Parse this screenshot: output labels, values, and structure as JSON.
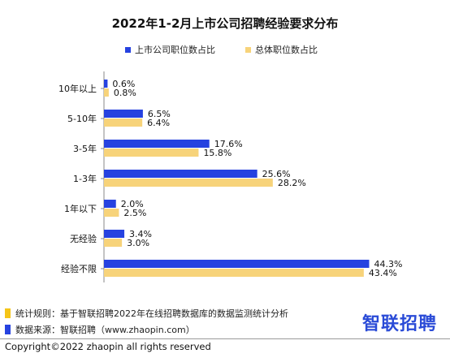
{
  "chart_data": {
    "type": "bar",
    "orientation": "horizontal",
    "title": "2022年1-2月上市公司招聘经验要求分布",
    "categories": [
      "10年以上",
      "5-10年",
      "3-5年",
      "1-3年",
      "1年以下",
      "无经验",
      "经验不限"
    ],
    "series": [
      {
        "name": "上市公司职位数占比",
        "color": "#2642e0",
        "values": [
          0.6,
          6.5,
          17.6,
          25.6,
          2.0,
          3.4,
          44.3
        ],
        "labels": [
          "0.6%",
          "6.5%",
          "17.6%",
          "25.6%",
          "2.0%",
          "3.4%",
          "44.3%"
        ]
      },
      {
        "name": "总体职位数占比",
        "color": "#f7d37a",
        "values": [
          0.8,
          6.4,
          15.8,
          28.2,
          2.5,
          3.0,
          43.4
        ],
        "labels": [
          "0.8%",
          "6.4%",
          "15.8%",
          "28.2%",
          "2.5%",
          "3.0%",
          "43.4%"
        ]
      }
    ],
    "xlim": [
      0,
      48
    ],
    "legend_position": "top"
  },
  "footer": {
    "notes": [
      {
        "text": "统计规则：基于智联招聘2022年在线招聘数据库的数据监测统计分析",
        "color": "#f5c518"
      },
      {
        "text": "数据来源：智联招聘（www.zhaopin.com）",
        "color": "#2642e0"
      }
    ],
    "logo": "智联招聘",
    "copyright": "Copyright©2022 zhaopin all rights reserved"
  }
}
